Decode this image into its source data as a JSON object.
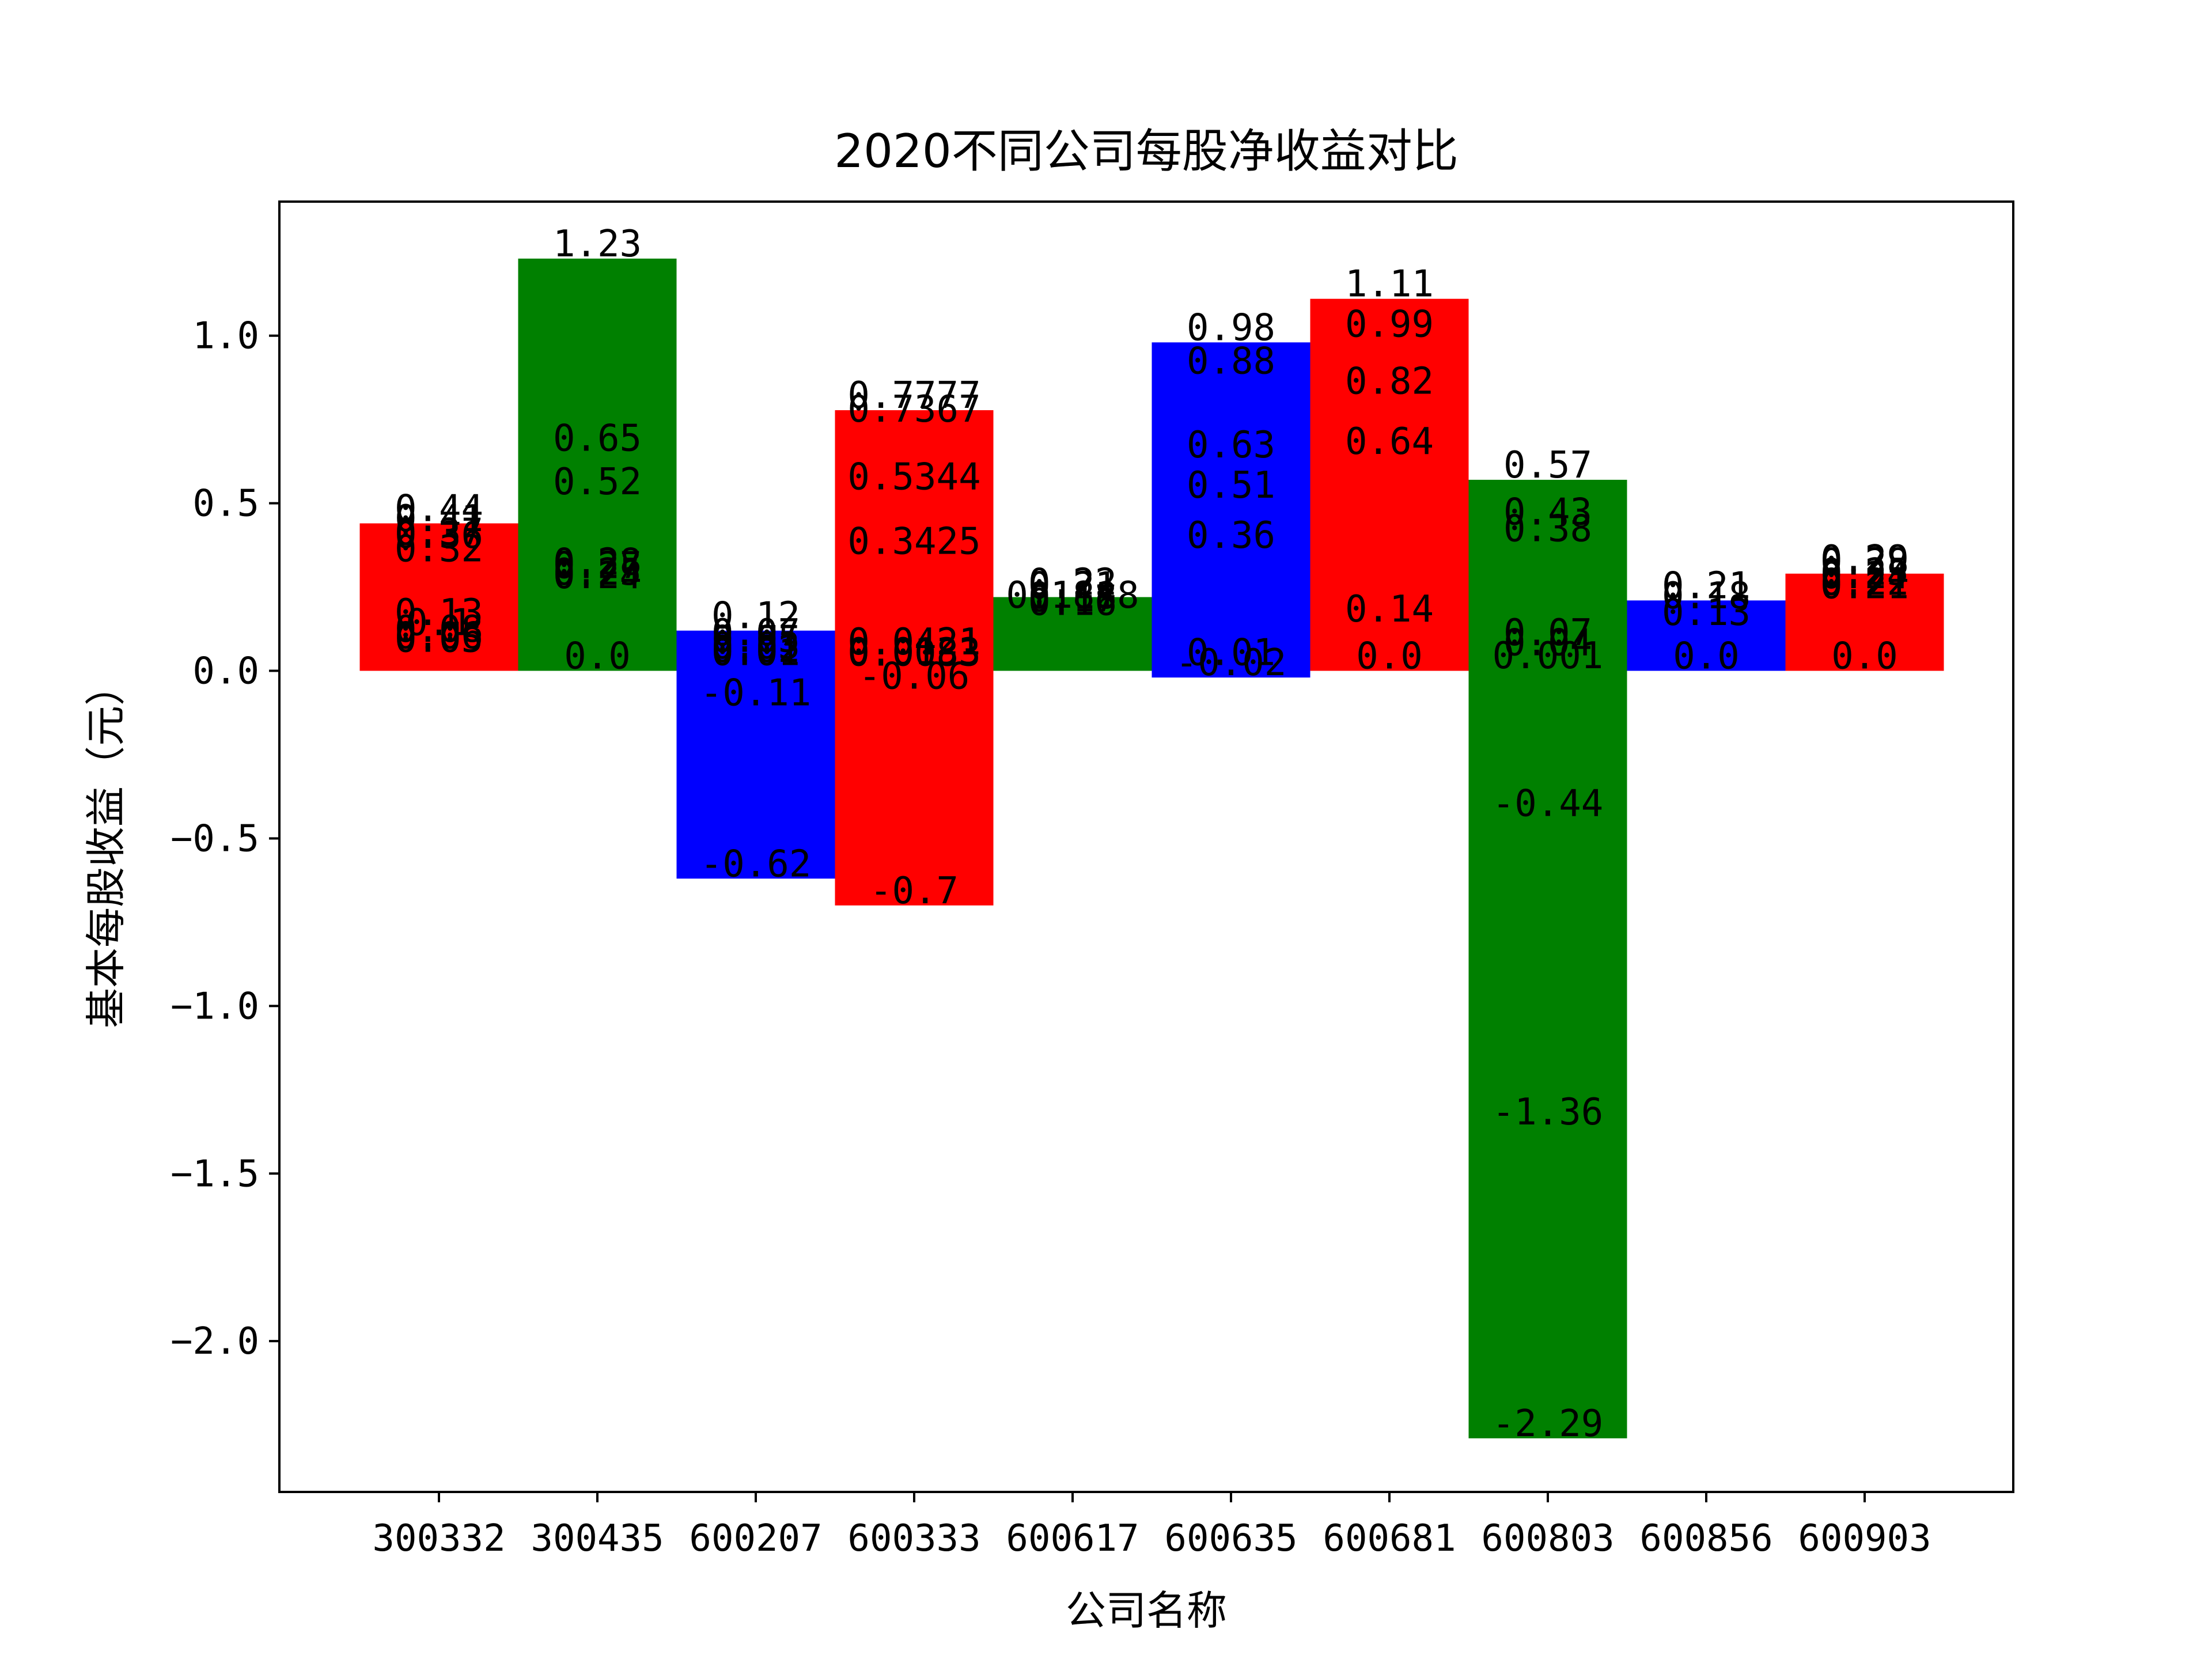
{
  "chart_data": {
    "type": "bar",
    "title": "2020不同公司每股净收益对比",
    "xlabel": "公司名称",
    "ylabel": "基本每股收益（元）",
    "ylim": [
      -2.45,
      1.4
    ],
    "yticks": [
      1.0,
      0.5,
      0.0,
      -0.5,
      -1.0,
      -1.5,
      -2.0
    ],
    "ytick_labels": [
      "1.0",
      "0.5",
      "0.0",
      "−0.5",
      "−1.0",
      "−1.5",
      "−2.0"
    ],
    "grid": false,
    "categories": [
      "300332",
      "300435",
      "600207",
      "600333",
      "600617",
      "600635",
      "600681",
      "600803",
      "600856",
      "600903"
    ],
    "values": [
      0.44,
      1.23,
      0.12,
      0.7777,
      0.22,
      0.98,
      1.11,
      0.57,
      0.21,
      0.29
    ],
    "bar_bottoms": [
      0.0,
      0.0,
      -0.62,
      -0.7,
      0.0,
      -0.02,
      0.0,
      -2.29,
      0.0,
      0.0
    ],
    "bar_colors": [
      "#ff0000",
      "#008000",
      "#0000ff",
      "#ff0000",
      "#008000",
      "#0000ff",
      "#ff0000",
      "#008000",
      "#0000ff",
      "#ff0000"
    ],
    "value_labels": [
      [
        "0.44",
        "0.41",
        "0.37",
        "0.36",
        "0.32",
        "0.13",
        "0.1",
        "0.08",
        "0.06",
        "0.05"
      ],
      [
        "1.23",
        "0.65",
        "0.52",
        "0.28",
        "0.27",
        "0.25",
        "0.24",
        "0.0"
      ],
      [
        "0.12",
        "0.07",
        "0.05",
        "0.03",
        "0.02",
        "0.01",
        "-0.11",
        "-0.62"
      ],
      [
        "0.7777",
        "0.7367",
        "0.5344",
        "0.3425",
        "0.0421",
        "0.0133",
        "0.0083",
        "-0.06",
        "-0.7"
      ],
      [
        "0.22",
        "0.21",
        "0.18",
        "0.17",
        "0.16",
        "0.1818"
      ],
      [
        "0.98",
        "0.88",
        "0.63",
        "0.51",
        "0.36",
        "0.01",
        "-0.02"
      ],
      [
        "1.11",
        "0.99",
        "0.82",
        "0.64",
        "0.14",
        "0.0"
      ],
      [
        "0.57",
        "0.43",
        "0.38",
        "0.07",
        "0.04",
        "0.001",
        "-0.44",
        "-1.36",
        "-2.29"
      ],
      [
        "0.21",
        "0.18",
        "0.13",
        "0.0"
      ],
      [
        "0.29",
        "0.28",
        "0.25",
        "0.24",
        "0.22",
        "0.21",
        "0.0"
      ]
    ]
  }
}
